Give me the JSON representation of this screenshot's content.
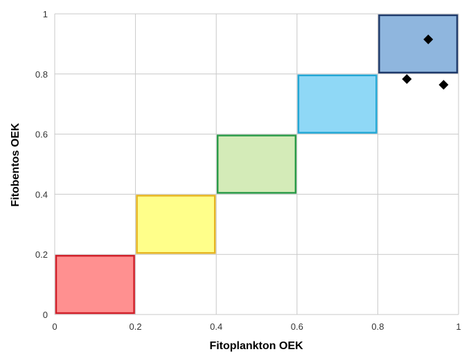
{
  "chart_data": {
    "type": "scatter",
    "xlabel": "Fitoplankton OEK",
    "ylabel": "Fitobentos OEK",
    "xlim": [
      0,
      1
    ],
    "ylim": [
      0,
      1
    ],
    "x_ticks": [
      "0",
      "0.2",
      "0.4",
      "0.6",
      "0.8",
      "1"
    ],
    "y_ticks": [
      "0",
      "0.2",
      "0.4",
      "0.6",
      "0.8",
      "1"
    ],
    "grid": true,
    "class_boxes": [
      {
        "x": [
          0.0,
          0.2
        ],
        "y": [
          0.0,
          0.2
        ],
        "fill": "#ff9090",
        "stroke": "#d0202a"
      },
      {
        "x": [
          0.2,
          0.4
        ],
        "y": [
          0.2,
          0.4
        ],
        "fill": "#ffff8a",
        "stroke": "#e6b422"
      },
      {
        "x": [
          0.4,
          0.6
        ],
        "y": [
          0.4,
          0.6
        ],
        "fill": "#d4ebb8",
        "stroke": "#2a9a48"
      },
      {
        "x": [
          0.6,
          0.8
        ],
        "y": [
          0.6,
          0.8
        ],
        "fill": "#8fd8f6",
        "stroke": "#22a6d4"
      },
      {
        "x": [
          0.8,
          1.0
        ],
        "y": [
          0.8,
          1.0
        ],
        "fill": "#8fb6de",
        "stroke": "#1f3a6a"
      }
    ],
    "points": [
      {
        "x": 0.925,
        "y": 0.915
      },
      {
        "x": 0.872,
        "y": 0.783
      },
      {
        "x": 0.963,
        "y": 0.764
      }
    ],
    "marker": "diamond",
    "marker_color": "#000000"
  }
}
